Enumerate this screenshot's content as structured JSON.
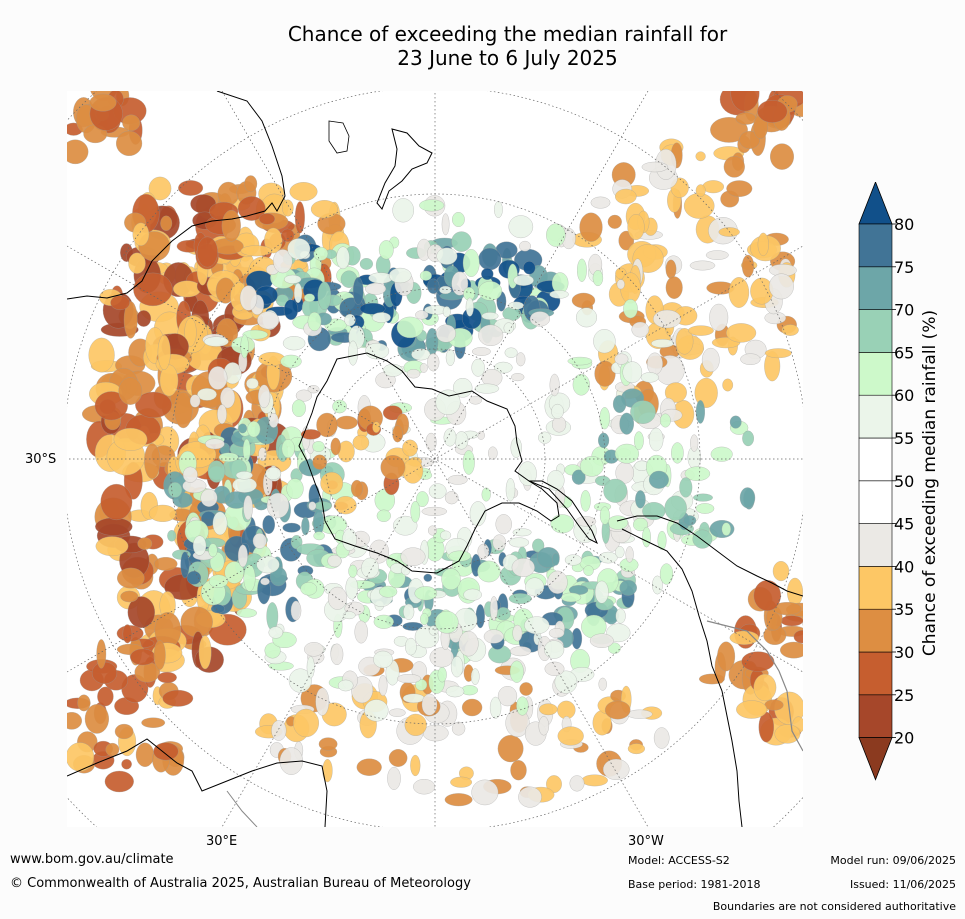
{
  "title": {
    "line1": "Chance of exceeding the median rainfall for",
    "line2": "23 June to 6 July 2025"
  },
  "axis_labels": {
    "lat_30s": "30°S",
    "lon_30e": "30°E",
    "lon_30w": "30°W"
  },
  "colorbar": {
    "title": "Chance of exceeding median rainfall (%)",
    "ticks": [
      "20",
      "25",
      "30",
      "35",
      "40",
      "45",
      "50",
      "55",
      "60",
      "65",
      "70",
      "75",
      "80"
    ],
    "bands": [
      {
        "from": 20,
        "to": 25,
        "color": "#a6472a"
      },
      {
        "from": 25,
        "to": 30,
        "color": "#c65e2f"
      },
      {
        "from": 30,
        "to": 35,
        "color": "#dd8e42"
      },
      {
        "from": 35,
        "to": 40,
        "color": "#fdc765"
      },
      {
        "from": 40,
        "to": 45,
        "color": "#ebe9e5"
      },
      {
        "from": 45,
        "to": 50,
        "color": "#ffffff"
      },
      {
        "from": 50,
        "to": 55,
        "color": "#ffffff"
      },
      {
        "from": 55,
        "to": 60,
        "color": "#ebf5ea"
      },
      {
        "from": 60,
        "to": 65,
        "color": "#cdf9ca"
      },
      {
        "from": 65,
        "to": 70,
        "color": "#99d1b6"
      },
      {
        "from": 70,
        "to": 75,
        "color": "#6da6a8"
      },
      {
        "from": 75,
        "to": 80,
        "color": "#417496"
      }
    ],
    "extend_low_color": "#8b3a1f",
    "extend_high_color": "#11508a"
  },
  "footer": {
    "website": "www.bom.gov.au/climate",
    "copyright": "© Commonwealth of Australia 2025, Australian Bureau of Meteorology",
    "model": "Model: ACCESS-S2",
    "base_period": "Base period: 1981-2018",
    "model_run": "Model run: 09/06/2025",
    "issued": "Issued: 11/06/2025",
    "disclaimer": "Boundaries are not considered authoritative"
  }
}
